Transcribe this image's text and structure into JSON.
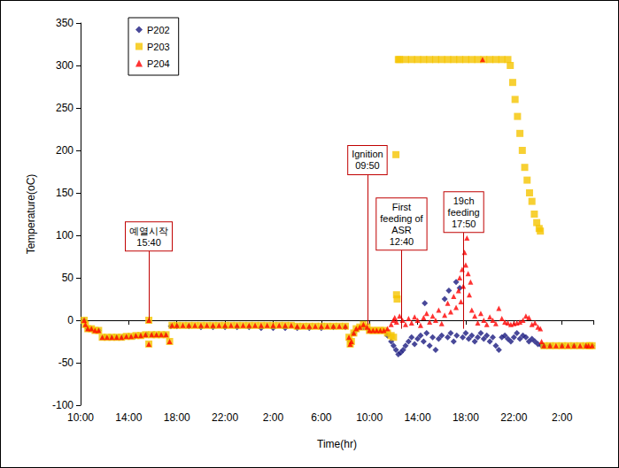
{
  "chart_data": {
    "type": "scatter",
    "xlabel": "Time(hr)",
    "ylabel": "Temperature(oC)",
    "xlim": [
      0,
      42.6
    ],
    "ylim": [
      -100,
      350
    ],
    "xticks": [
      {
        "value": 0,
        "label": "10:00"
      },
      {
        "value": 4,
        "label": "14:00"
      },
      {
        "value": 8,
        "label": "18:00"
      },
      {
        "value": 12,
        "label": "22:00"
      },
      {
        "value": 16,
        "label": "2:00"
      },
      {
        "value": 20,
        "label": "6:00"
      },
      {
        "value": 24,
        "label": "10:00"
      },
      {
        "value": 28,
        "label": "14:00"
      },
      {
        "value": 32,
        "label": "18:00"
      },
      {
        "value": 36,
        "label": "22:00"
      },
      {
        "value": 40,
        "label": "2:00"
      }
    ],
    "yticks": [
      -100,
      -50,
      0,
      50,
      100,
      150,
      200,
      250,
      300,
      350
    ],
    "grid": false,
    "legend": "upper left",
    "series": [
      {
        "name": "P202",
        "color": "#1a1a80",
        "marker": "diamond",
        "x": [
          0.3,
          0.6,
          1.0,
          1.5,
          2.0,
          2.5,
          3.0,
          3.5,
          4.0,
          4.5,
          5.0,
          5.5,
          6.0,
          6.5,
          7.0,
          7.5,
          8.0,
          9.0,
          10.0,
          11.0,
          12.0,
          13.0,
          14.0,
          15.0,
          16.0,
          17.0,
          18.0,
          19.0,
          20.0,
          21.0,
          22.0,
          22.4,
          22.7,
          23.0,
          23.5,
          24.0,
          24.5,
          25.0,
          25.5,
          25.8,
          26.0,
          26.2,
          26.4,
          26.6,
          26.8,
          27.0,
          27.25,
          27.5,
          27.75,
          28.0,
          28.25,
          28.5,
          28.6,
          28.75,
          29.0,
          29.25,
          29.5,
          29.75,
          30.0,
          30.25,
          30.5,
          30.6,
          30.75,
          31.0,
          31.2,
          31.25,
          31.5,
          31.75,
          32.0,
          32.25,
          32.5,
          32.75,
          33.0,
          33.25,
          33.5,
          33.75,
          34.0,
          34.25,
          34.5,
          34.75,
          35.0,
          35.25,
          35.5,
          35.75,
          36.0,
          36.25,
          36.5,
          36.75,
          37.0,
          37.25,
          37.5,
          37.75,
          38.0,
          38.3,
          38.5,
          39.0,
          40.0,
          41.0,
          42.0,
          42.5
        ],
        "values": [
          0,
          -10,
          -11,
          -12,
          -20,
          -20,
          -20,
          -20,
          -19,
          -19,
          -18,
          -17,
          -17,
          -17,
          -17,
          -7,
          -7,
          -7,
          -8,
          -8,
          -8,
          -8,
          -8,
          -9,
          -9,
          -9,
          -9,
          -9,
          -9,
          -8,
          -8,
          -25,
          -15,
          -10,
          -8,
          -12,
          -12,
          -12,
          -18,
          -25,
          -30,
          -35,
          -40,
          -38,
          -35,
          -30,
          -25,
          -20,
          -28,
          -22,
          -18,
          -25,
          20,
          -15,
          -30,
          -20,
          -35,
          -22,
          -18,
          25,
          -20,
          35,
          -15,
          -25,
          45,
          -18,
          38,
          -20,
          -15,
          -22,
          -18,
          -25,
          -20,
          -15,
          -22,
          -18,
          -25,
          -20,
          -30,
          -35,
          -20,
          -18,
          -22,
          -25,
          -20,
          -15,
          -22,
          -18,
          -20,
          -25,
          -22,
          -25,
          -28,
          -30,
          -30,
          -30,
          -30,
          -30,
          -30,
          -30
        ]
      },
      {
        "name": "P203",
        "color": "#f5c400",
        "marker": "square",
        "x": [
          0.3,
          0.4,
          0.6,
          0.9,
          1.2,
          1.5,
          1.8,
          2.2,
          2.6,
          3.0,
          3.4,
          3.8,
          4.2,
          4.6,
          5.0,
          5.4,
          5.67,
          5.67,
          5.9,
          6.3,
          6.7,
          7.1,
          7.4,
          7.6,
          8.0,
          8.5,
          9.0,
          9.5,
          10.0,
          10.5,
          11.0,
          11.5,
          12.0,
          12.5,
          13.0,
          13.5,
          14.0,
          14.5,
          15.0,
          15.5,
          16.0,
          16.5,
          17.0,
          17.5,
          18.0,
          18.5,
          19.0,
          19.5,
          20.0,
          20.5,
          21.0,
          21.5,
          22.0,
          22.3,
          22.4,
          22.5,
          22.7,
          22.9,
          23.2,
          23.5,
          23.8,
          24.0,
          24.3,
          24.6,
          24.9,
          25.2,
          25.5,
          25.8,
          26.0,
          26.2,
          26.25,
          26.3,
          26.4,
          26.5,
          27.0,
          27.5,
          28.0,
          28.5,
          29.0,
          29.5,
          30.0,
          30.5,
          31.0,
          31.5,
          32.0,
          32.5,
          33.0,
          33.5,
          34.0,
          34.5,
          35.0,
          35.5,
          35.7,
          35.9,
          36.1,
          36.3,
          36.5,
          36.7,
          36.9,
          37.1,
          37.3,
          37.5,
          37.7,
          37.9,
          38.1,
          38.2,
          38.5,
          39.0,
          39.5,
          40.0,
          40.5,
          41.0,
          41.5,
          42.0,
          42.3,
          42.5
        ],
        "values": [
          0,
          -5,
          -10,
          -10,
          -12,
          -12,
          -20,
          -20,
          -20,
          -20,
          -20,
          -19,
          -19,
          -18,
          -18,
          -17,
          0,
          -28,
          -17,
          -17,
          -17,
          -17,
          -25,
          -6,
          -6,
          -6,
          -6,
          -6,
          -6,
          -6,
          -6,
          -6,
          -6,
          -6,
          -6,
          -6,
          -6,
          -6,
          -6,
          -6,
          -6,
          -6,
          -6,
          -6,
          -7,
          -7,
          -7,
          -7,
          -7,
          -7,
          -7,
          -7,
          -7,
          -20,
          -28,
          -25,
          -15,
          -10,
          -8,
          -5,
          -8,
          -12,
          -12,
          -12,
          -12,
          -12,
          -15,
          -18,
          -20,
          195,
          30,
          25,
          307,
          307,
          307,
          307,
          307,
          307,
          307,
          307,
          307,
          307,
          307,
          307,
          307,
          307,
          307,
          307,
          307,
          307,
          307,
          307,
          300,
          280,
          260,
          240,
          220,
          200,
          180,
          165,
          150,
          140,
          125,
          115,
          108,
          105,
          -30,
          -30,
          -30,
          -30,
          -30,
          -30,
          -30,
          -30,
          -30,
          -30
        ]
      },
      {
        "name": "P204",
        "color": "#ff0000",
        "marker": "triangle",
        "x": [
          0.3,
          0.4,
          0.6,
          0.9,
          1.2,
          1.5,
          1.8,
          2.2,
          2.6,
          3.0,
          3.4,
          3.8,
          4.2,
          4.6,
          5.0,
          5.4,
          5.67,
          5.67,
          5.9,
          6.3,
          6.7,
          7.1,
          7.4,
          7.6,
          8.0,
          8.5,
          9.0,
          9.5,
          10.0,
          10.5,
          11.0,
          11.5,
          12.0,
          12.5,
          13.0,
          13.5,
          14.0,
          14.5,
          15.0,
          15.5,
          16.0,
          16.5,
          17.0,
          17.5,
          18.0,
          18.5,
          19.0,
          19.5,
          20.0,
          20.5,
          21.0,
          21.5,
          22.0,
          22.3,
          22.4,
          22.5,
          22.7,
          22.9,
          23.2,
          23.5,
          23.8,
          24.0,
          24.3,
          24.6,
          24.9,
          25.2,
          25.5,
          25.8,
          26.0,
          26.1,
          26.25,
          26.5,
          26.75,
          27.0,
          27.25,
          27.5,
          27.75,
          28.0,
          28.25,
          28.5,
          28.75,
          29.0,
          29.25,
          29.5,
          29.75,
          30.0,
          30.25,
          30.5,
          30.75,
          31.0,
          31.2,
          31.4,
          31.5,
          31.6,
          31.7,
          31.8,
          31.9,
          32.0,
          32.1,
          32.2,
          32.3,
          32.4,
          32.5,
          32.75,
          33.0,
          33.25,
          33.4,
          33.5,
          33.75,
          34.0,
          34.25,
          34.5,
          34.75,
          35.0,
          35.25,
          35.5,
          35.75,
          36.0,
          36.25,
          36.5,
          36.75,
          37.0,
          37.25,
          37.5,
          37.75,
          38.0,
          38.2,
          38.3,
          38.5,
          39.0,
          39.5,
          40.0,
          40.5,
          41.0,
          41.5,
          42.0,
          42.2,
          42.5
        ],
        "values": [
          0,
          -5,
          -10,
          -10,
          -12,
          -12,
          -20,
          -20,
          -20,
          -20,
          -20,
          -19,
          -19,
          -18,
          -18,
          -17,
          0,
          -28,
          -17,
          -17,
          -17,
          -17,
          -25,
          -6,
          -6,
          -6,
          -6,
          -6,
          -6,
          -6,
          -6,
          -6,
          -6,
          -6,
          -6,
          -6,
          -6,
          -6,
          -6,
          -6,
          -6,
          -6,
          -6,
          -6,
          -7,
          -7,
          -7,
          -7,
          -7,
          -7,
          -7,
          -7,
          -7,
          -20,
          -28,
          -25,
          -15,
          -10,
          -8,
          -5,
          -8,
          -12,
          -12,
          -12,
          -12,
          -12,
          -10,
          -5,
          0,
          3,
          -2,
          5,
          0,
          -5,
          2,
          -3,
          4,
          0,
          -6,
          3,
          8,
          -2,
          5,
          0,
          12,
          -4,
          6,
          20,
          10,
          28,
          15,
          35,
          50,
          22,
          60,
          40,
          80,
          65,
          97,
          55,
          30,
          45,
          12,
          5,
          -3,
          8,
          307,
          0,
          -5,
          4,
          0,
          -4,
          14,
          2,
          -2,
          -3,
          -5,
          -4,
          -3,
          -2,
          0,
          5,
          3,
          -5,
          -3,
          -8,
          -10,
          -25,
          -30,
          -30,
          -30,
          -30,
          -30,
          -30,
          -30,
          -30,
          -30,
          -30
        ]
      }
    ],
    "annotations": [
      {
        "text": "예열시작\n15:40",
        "x": 5.667
      },
      {
        "text": "Ignition\n09:50",
        "x": 23.833
      },
      {
        "text": "First\nfeeding of\nASR\n12:40",
        "x": 26.667
      },
      {
        "text": "19ch\nfeeding\n17:50",
        "x": 31.833
      }
    ]
  }
}
